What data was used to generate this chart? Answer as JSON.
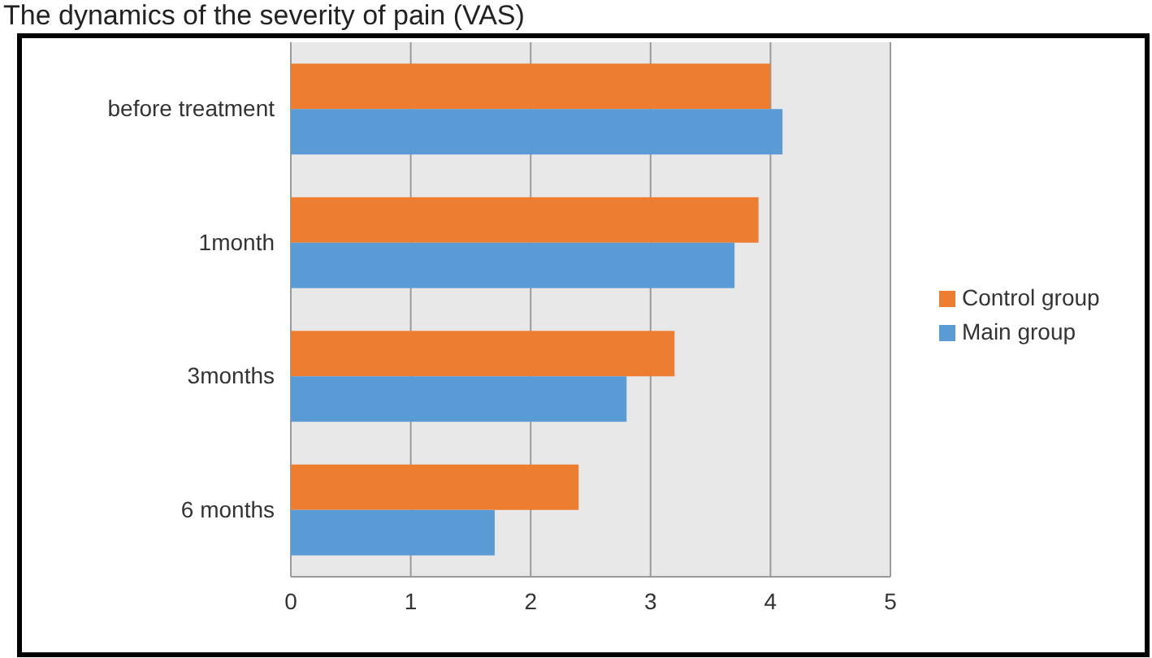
{
  "chart_data": {
    "type": "bar",
    "orientation": "horizontal",
    "title": "The dynamics of the severity of pain (VAS)",
    "categories": [
      "before treatment",
      "1month",
      "3months",
      "6 months"
    ],
    "series": [
      {
        "name": "Control group",
        "color": "#ed7d31",
        "values": [
          4.0,
          3.9,
          3.2,
          2.4
        ]
      },
      {
        "name": "Main group",
        "color": "#5b9bd5",
        "values": [
          4.1,
          3.7,
          2.8,
          1.7
        ]
      }
    ],
    "xlim": [
      0,
      5
    ],
    "xticks": [
      0,
      1,
      2,
      3,
      4,
      5
    ],
    "grid": "x",
    "legend": "right"
  }
}
